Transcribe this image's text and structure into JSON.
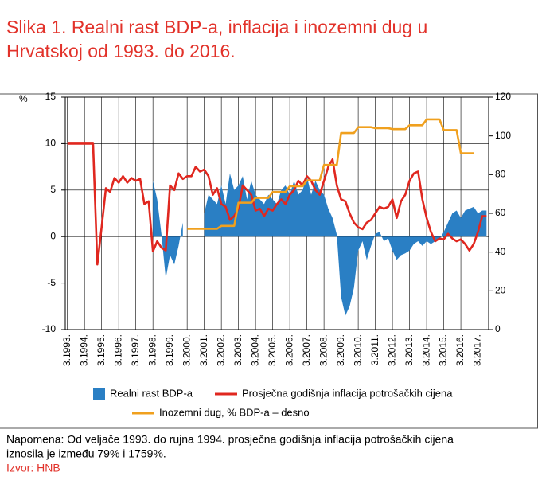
{
  "chart_data": {
    "type": "combo",
    "title": [
      "Slika 1. Realni rast BDP-a, inflacija i inozemni dug u",
      "Hrvatskoj od 1993. do 2016."
    ],
    "y_axis_label": "%",
    "categories": [
      "3.1993.",
      null,
      null,
      null,
      "3.1994.",
      null,
      null,
      null,
      "3.1995.",
      null,
      null,
      null,
      "3.1996.",
      null,
      null,
      null,
      "3.1997.",
      null,
      null,
      null,
      "3.1998.",
      null,
      null,
      null,
      "3.1999.",
      null,
      null,
      null,
      "3.2000.",
      null,
      null,
      null,
      "3.2001.",
      null,
      null,
      null,
      "3.2002.",
      null,
      null,
      null,
      "3.2003.",
      null,
      null,
      null,
      "3.2004.",
      null,
      null,
      null,
      "3.2005.",
      null,
      null,
      null,
      "3.2006.",
      null,
      null,
      null,
      "3.2007.",
      null,
      null,
      null,
      "3.2008.",
      null,
      null,
      null,
      "3.2009.",
      null,
      null,
      null,
      "3.2010.",
      null,
      null,
      null,
      "3.2011.",
      null,
      null,
      null,
      "3.2012.",
      null,
      null,
      null,
      "3.2013.",
      null,
      null,
      null,
      "3.2014.",
      null,
      null,
      null,
      "3.2015.",
      null,
      null,
      null,
      "3.2016.",
      null,
      null,
      null,
      "3.2017.",
      null,
      null
    ],
    "ylim": [
      -10,
      15
    ],
    "yticks": [
      -10,
      -5,
      0,
      5,
      10,
      15
    ],
    "y2lim": [
      0,
      120
    ],
    "y2ticks": [
      0,
      20,
      40,
      60,
      80,
      100,
      120
    ],
    "grid": true,
    "series": [
      {
        "name": "Realni rast BDP-a",
        "type": "area",
        "color": "#2a7fc4",
        "values": [
          null,
          null,
          null,
          null,
          null,
          null,
          null,
          null,
          null,
          null,
          null,
          null,
          null,
          null,
          null,
          null,
          null,
          null,
          null,
          null,
          6.0,
          4.0,
          0.2,
          -4.5,
          -2.0,
          -3.0,
          -1.0,
          1.5,
          null,
          null,
          null,
          null,
          2.5,
          4.5,
          4.0,
          3.5,
          5.5,
          3.5,
          6.8,
          5.0,
          5.5,
          6.5,
          4.0,
          6.0,
          4.5,
          4.0,
          3.5,
          4.5,
          4.0,
          3.5,
          5.0,
          5.5,
          4.5,
          6.0,
          4.5,
          5.0,
          6.5,
          4.5,
          6.0,
          5.0,
          4.5,
          3.0,
          2.0,
          0.2,
          -6.5,
          -8.5,
          -7.5,
          -5.5,
          -1.5,
          -0.5,
          -2.5,
          -1.0,
          0.3,
          0.5,
          -0.5,
          -0.2,
          -1.5,
          -2.5,
          -2.0,
          -1.8,
          -1.5,
          -0.8,
          -0.5,
          -1.0,
          -0.5,
          -0.8,
          -0.5,
          -0.3,
          0.5,
          1.5,
          2.5,
          2.8,
          2.0,
          2.8,
          3.0,
          3.2,
          2.5,
          2.8,
          2.8
        ]
      },
      {
        "name": "Prosječna godišnja inflacija potrošačkih cijena",
        "type": "line",
        "color": "#e0271f",
        "values": [
          10,
          10,
          10,
          10,
          10,
          10,
          10,
          -3,
          1,
          5.2,
          4.8,
          6.3,
          5.8,
          6.5,
          5.8,
          6.3,
          6.0,
          6.2,
          3.5,
          3.8,
          -1.6,
          -0.5,
          -1.2,
          -1.5,
          5.5,
          5.0,
          6.8,
          6.2,
          6.5,
          6.5,
          7.5,
          7.0,
          7.2,
          6.5,
          4.5,
          5.2,
          3.5,
          3.2,
          1.8,
          2.2,
          3.0,
          5.5,
          5.0,
          4.5,
          2.8,
          3.0,
          2.2,
          3.0,
          2.8,
          3.5,
          4.0,
          3.5,
          4.5,
          5.0,
          6.0,
          5.5,
          6.5,
          6.0,
          5.0,
          4.5,
          6.0,
          7.5,
          8.3,
          5.5,
          4.0,
          3.8,
          2.5,
          1.5,
          1.0,
          0.8,
          1.5,
          1.8,
          2.5,
          3.2,
          3.0,
          3.2,
          4.0,
          2.0,
          3.8,
          4.5,
          6.0,
          6.8,
          7.0,
          4.0,
          2.0,
          0.5,
          -0.5,
          -0.2,
          -0.3,
          0.3,
          -0.2,
          -0.5,
          -0.3,
          -0.8,
          -1.5,
          -0.8,
          0.5,
          2.2,
          2.2
        ]
      },
      {
        "name": "Inozemni dug, % BDP-a – desno",
        "type": "line",
        "axis": "y2",
        "color": "#f0a01e",
        "values": [
          null,
          null,
          null,
          null,
          null,
          null,
          null,
          null,
          null,
          null,
          null,
          null,
          null,
          null,
          null,
          null,
          null,
          null,
          null,
          null,
          null,
          null,
          null,
          null,
          null,
          null,
          null,
          null,
          52,
          52,
          52,
          52,
          52,
          52,
          52,
          52,
          53.5,
          53.5,
          53.5,
          53.5,
          65.5,
          65.5,
          65.5,
          65.5,
          68,
          68,
          68,
          68,
          71,
          71,
          71,
          71,
          74,
          74,
          74,
          74,
          77,
          77,
          77,
          77,
          85,
          85,
          85,
          85,
          101.5,
          101.5,
          101.5,
          101.5,
          104.5,
          104.5,
          104.5,
          104.5,
          104,
          104,
          104,
          104,
          103.5,
          103.5,
          103.5,
          103.5,
          105.5,
          105.5,
          105.5,
          105.5,
          108.5,
          108.5,
          108.5,
          108.5,
          103,
          103,
          103,
          103,
          91,
          91,
          91,
          91,
          null,
          null,
          null
        ]
      }
    ],
    "note": [
      "Napomena: Od veljače 1993. do rujna 1994. prosječna godišnja inflacija potrošačkih cijena",
      "iznosila je između 79% i 1759%."
    ],
    "source": "Izvor: HNB"
  }
}
